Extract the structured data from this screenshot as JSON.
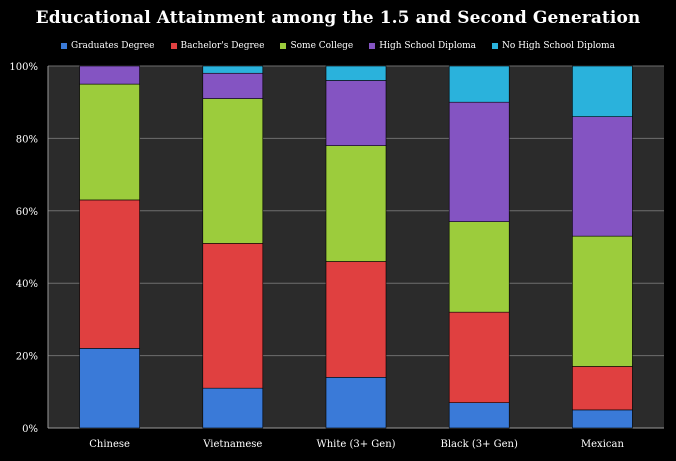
{
  "chart_data": {
    "type": "bar",
    "stacked": true,
    "title": "Educational Attainment among the 1.5 and Second Generation",
    "xlabel": "",
    "ylabel": "",
    "ylim": [
      0,
      100
    ],
    "y_tick_labels": [
      "0%",
      "20%",
      "40%",
      "60%",
      "80%",
      "100%"
    ],
    "y_ticks": [
      0,
      20,
      40,
      60,
      80,
      100
    ],
    "grid": true,
    "legend_position": "top",
    "categories": [
      "Chinese",
      "Vietnamese",
      "White (3+ Gen)",
      "Black (3+ Gen)",
      "Mexican"
    ],
    "series": [
      {
        "name": "Graduates Degree",
        "color": "#3a7ad8",
        "values": [
          22,
          11,
          14,
          7,
          5
        ]
      },
      {
        "name": "Bachelor's Degree",
        "color": "#e04040",
        "values": [
          41,
          40,
          32,
          25,
          12
        ]
      },
      {
        "name": "Some College",
        "color": "#9ccc3c",
        "values": [
          32,
          40,
          32,
          25,
          36
        ]
      },
      {
        "name": "High School Diploma",
        "color": "#8454c2",
        "values": [
          5,
          7,
          18,
          33,
          33
        ]
      },
      {
        "name": "No High School Diploma",
        "color": "#2ab2dc",
        "values": [
          0,
          2,
          4,
          10,
          14
        ]
      }
    ]
  }
}
